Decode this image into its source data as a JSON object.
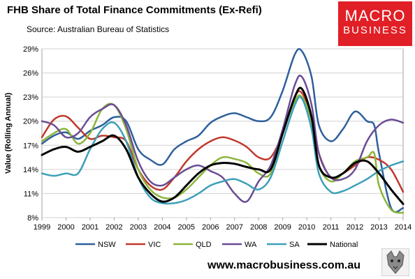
{
  "header": {
    "title": "FHB Share of Total Finance Commitments (Ex-Refi)",
    "subtitle": "Source: Australian Bureau of Statistics",
    "logo_line1": "MACRO",
    "logo_line2": "BUSINESS"
  },
  "footer": {
    "url": "www.macrobusiness.com.au"
  },
  "colors": {
    "NSW": "#2e5f9b",
    "VIC": "#c0392b",
    "QLD": "#8bb53a",
    "WA": "#6a4c93",
    "SA": "#3d9fb8",
    "National": "#000000",
    "logo": "#e11f26"
  },
  "chart_data": {
    "type": "line",
    "title": "FHB Share of Total Finance Commitments (Ex-Refi)",
    "ylabel": "Value (Rolling Annual)",
    "xlabel": "",
    "xlim": [
      1999,
      2014
    ],
    "ylim": [
      8,
      29
    ],
    "ytick_labels": [
      "8%",
      "11%",
      "14%",
      "17%",
      "20%",
      "23%",
      "26%",
      "29%"
    ],
    "xtick_labels": [
      "1999",
      "2000",
      "2001",
      "2002",
      "2003",
      "2004",
      "2005",
      "2006",
      "2007",
      "2008",
      "2009",
      "2010",
      "2011",
      "2012",
      "2013",
      "2014"
    ],
    "grid": true,
    "legend": "bottom",
    "series": [
      {
        "name": "NSW",
        "x": [
          1999,
          1999.5,
          2000,
          2000.5,
          2001,
          2001.5,
          2002,
          2002.5,
          2003,
          2003.5,
          2004,
          2004.5,
          2005,
          2005.5,
          2006,
          2006.5,
          2007,
          2007.5,
          2008,
          2008.5,
          2009,
          2009.5,
          2009.8,
          2010.2,
          2010.5,
          2011,
          2011.5,
          2012,
          2012.5,
          2012.8,
          2013,
          2013.5,
          2014
        ],
        "y": [
          17.2,
          18.2,
          18.6,
          17.8,
          18.8,
          19.5,
          20.5,
          20.0,
          16.5,
          15.2,
          14.6,
          16.5,
          17.5,
          18.2,
          19.8,
          20.6,
          21.0,
          20.5,
          20.0,
          20.5,
          23.8,
          28.3,
          28.7,
          25.5,
          19.5,
          17.5,
          19.0,
          21.2,
          20.0,
          19.5,
          16.0,
          9.2,
          9.2
        ]
      },
      {
        "name": "VIC",
        "x": [
          1999,
          1999.5,
          2000,
          2000.5,
          2001,
          2001.5,
          2002,
          2002.5,
          2003,
          2003.5,
          2004,
          2004.5,
          2005,
          2005.5,
          2006,
          2006.5,
          2007,
          2007.5,
          2008,
          2008.5,
          2009,
          2009.5,
          2009.8,
          2010.2,
          2010.5,
          2011,
          2011.5,
          2012,
          2012.5,
          2013,
          2013.5,
          2014
        ],
        "y": [
          18.0,
          20.2,
          20.6,
          19.2,
          17.8,
          18.2,
          18.0,
          17.5,
          14.0,
          12.0,
          11.5,
          13.0,
          15.0,
          16.5,
          17.5,
          18.0,
          17.6,
          16.8,
          15.5,
          15.5,
          18.5,
          23.0,
          23.5,
          20.5,
          16.0,
          13.0,
          13.5,
          14.5,
          15.5,
          15.2,
          14.0,
          11.2
        ]
      },
      {
        "name": "QLD",
        "x": [
          1999,
          1999.5,
          2000,
          2000.5,
          2001,
          2001.5,
          2002,
          2002.5,
          2003,
          2003.5,
          2004,
          2004.5,
          2005,
          2005.5,
          2006,
          2006.5,
          2007,
          2007.5,
          2008,
          2008.5,
          2009,
          2009.5,
          2009.8,
          2010.2,
          2010.5,
          2011,
          2011.5,
          2012,
          2012.5,
          2012.8,
          2013,
          2013.5,
          2014
        ],
        "y": [
          17.5,
          18.5,
          19.0,
          17.2,
          18.5,
          21.5,
          22.0,
          19.0,
          14.0,
          11.5,
          10.5,
          10.5,
          11.5,
          13.0,
          14.5,
          15.5,
          15.3,
          14.8,
          13.5,
          13.5,
          18.5,
          22.5,
          23.0,
          20.0,
          14.5,
          12.5,
          13.5,
          15.0,
          15.5,
          16.0,
          12.0,
          9.0,
          8.6
        ]
      },
      {
        "name": "WA",
        "x": [
          1999,
          1999.5,
          2000,
          2000.5,
          2001,
          2001.5,
          2002,
          2002.5,
          2003,
          2003.5,
          2004,
          2004.5,
          2005,
          2005.5,
          2006,
          2006.5,
          2007,
          2007.5,
          2008,
          2008.5,
          2009,
          2009.5,
          2009.8,
          2010.2,
          2010.5,
          2011,
          2011.5,
          2012,
          2012.5,
          2013,
          2013.5,
          2014
        ],
        "y": [
          20.0,
          19.5,
          18.0,
          18.5,
          20.5,
          21.5,
          22.0,
          19.5,
          15.0,
          12.5,
          12.0,
          13.0,
          14.0,
          14.5,
          13.8,
          13.0,
          11.0,
          10.0,
          12.5,
          14.5,
          19.0,
          24.5,
          25.5,
          22.0,
          16.0,
          13.0,
          12.8,
          14.0,
          17.5,
          19.5,
          20.2,
          19.8
        ]
      },
      {
        "name": "SA",
        "x": [
          1999,
          1999.5,
          2000,
          2000.5,
          2001,
          2001.5,
          2002,
          2002.5,
          2003,
          2003.5,
          2004,
          2004.5,
          2005,
          2005.5,
          2006,
          2006.5,
          2007,
          2007.5,
          2008,
          2008.5,
          2009,
          2009.5,
          2009.8,
          2010.2,
          2010.5,
          2011,
          2011.5,
          2012,
          2012.5,
          2013,
          2013.5,
          2014
        ],
        "y": [
          13.5,
          13.2,
          13.5,
          13.5,
          16.5,
          19.0,
          19.8,
          17.5,
          13.0,
          10.5,
          9.8,
          9.8,
          10.2,
          11.0,
          12.0,
          12.5,
          12.8,
          12.2,
          11.5,
          13.0,
          17.5,
          22.0,
          22.8,
          19.0,
          13.5,
          11.2,
          11.3,
          12.0,
          12.8,
          13.8,
          14.5,
          15.0
        ]
      },
      {
        "name": "National",
        "x": [
          1999,
          1999.5,
          2000,
          2000.5,
          2001,
          2001.5,
          2002,
          2002.5,
          2003,
          2003.5,
          2004,
          2004.5,
          2005,
          2005.5,
          2006,
          2006.5,
          2007,
          2007.5,
          2008,
          2008.5,
          2009,
          2009.5,
          2009.8,
          2010.2,
          2010.5,
          2011,
          2011.5,
          2012,
          2012.5,
          2013,
          2013.5,
          2014
        ],
        "y": [
          15.8,
          16.5,
          16.8,
          16.2,
          16.8,
          17.5,
          18.2,
          16.5,
          13.0,
          11.0,
          10.0,
          10.5,
          12.0,
          13.5,
          14.5,
          14.8,
          14.7,
          14.3,
          14.0,
          14.0,
          18.5,
          23.0,
          24.0,
          20.5,
          14.5,
          13.0,
          13.5,
          14.8,
          15.0,
          13.5,
          11.5,
          9.7
        ]
      }
    ]
  }
}
